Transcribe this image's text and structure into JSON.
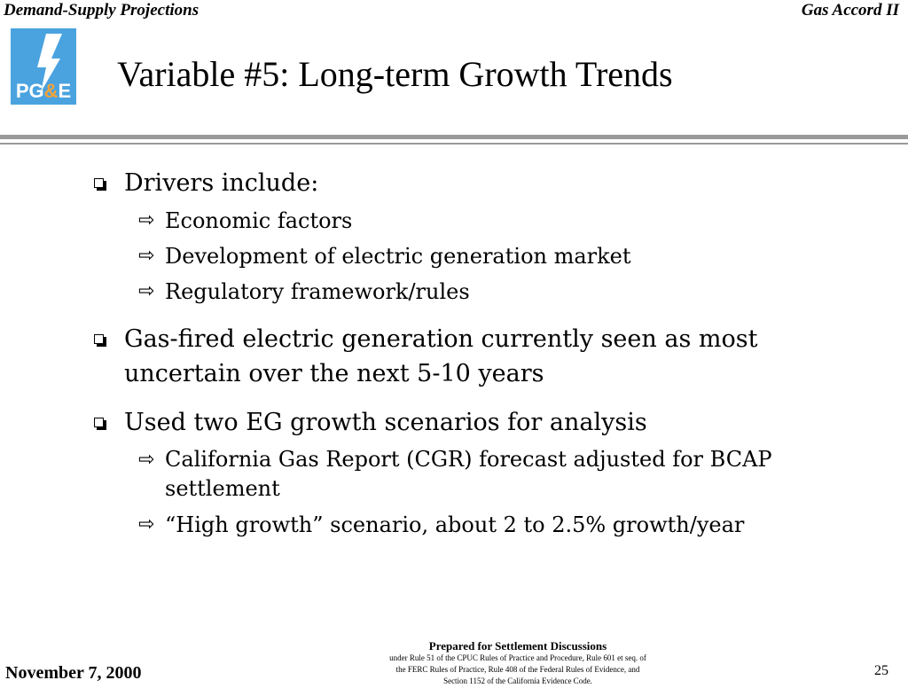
{
  "header": {
    "left": "Demand-Supply Projections",
    "right": "Gas Accord II"
  },
  "logo": {
    "text": "PG&E",
    "color": "#4aa3df"
  },
  "title": "Variable #5:  Long-term Growth Trends",
  "bullets": [
    {
      "text": "Drivers include:",
      "sub": [
        "Economic factors",
        "Development of electric generation market",
        "Regulatory framework/rules"
      ]
    },
    {
      "line1": "Gas-fired electric generation currently seen as most",
      "line2": "uncertain over the next 5-10 years"
    },
    {
      "text": "Used two EG growth scenarios for analysis",
      "sub_wrap": {
        "line1": "California Gas Report (CGR) forecast adjusted for BCAP",
        "line2": "settlement"
      },
      "sub": [
        "“High growth” scenario, about 2 to 2.5% growth/year"
      ]
    }
  ],
  "footer": {
    "date": "November 7, 2000",
    "page": "25",
    "note_title": "Prepared for Settlement Discussions",
    "note_lines": [
      "under Rule 51 of the CPUC Rules of Practice and Procedure, Rule 601 et seq. of",
      "the FERC Rules of Practice, Rule 408 of the Federal Rules of Evidence, and",
      "Section 1152 of the California Evidence Code."
    ]
  }
}
